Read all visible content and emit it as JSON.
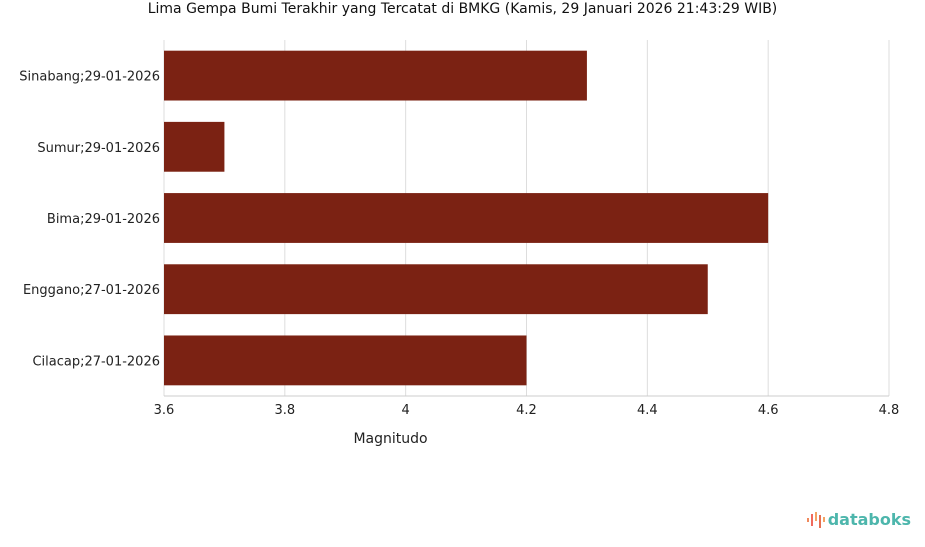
{
  "chart_data": {
    "type": "bar",
    "orientation": "horizontal",
    "title": "Lima Gempa Bumi Terakhir yang Tercatat di BMKG (Kamis, 29 Januari 2026 21:43:29 WIB)",
    "xlabel": "Magnitudo",
    "ylabel": "",
    "categories": [
      "Sinabang;29-01-2026",
      "Sumur;29-01-2026",
      "Bima;29-01-2026",
      "Enggano;27-01-2026",
      "Cilacap;27-01-2026"
    ],
    "values": [
      4.3,
      3.7,
      4.6,
      4.5,
      4.2
    ],
    "xlim": [
      3.6,
      4.8
    ],
    "xticks": [
      "3.6",
      "3.8",
      "4",
      "4.2",
      "4.4",
      "4.6",
      "4.8"
    ],
    "grid": true,
    "bar_color": "#7b2213"
  },
  "brand": {
    "logo_text": "databoks",
    "logo_color": "#4db6ac"
  }
}
